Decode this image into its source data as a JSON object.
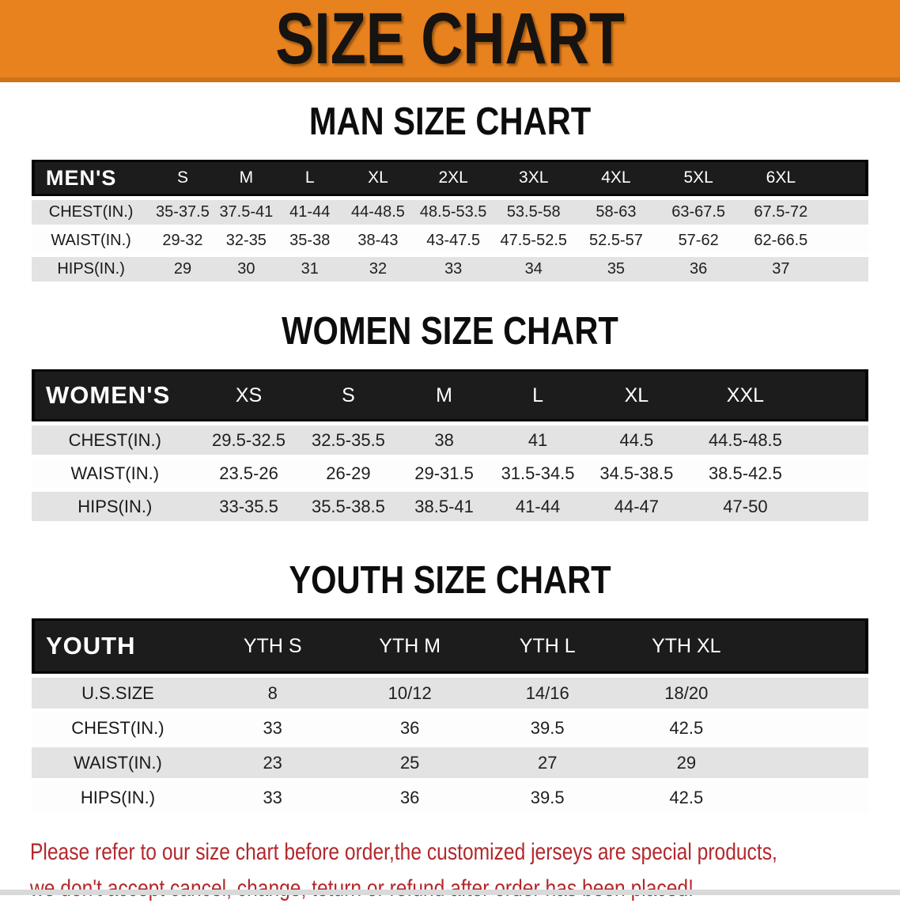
{
  "banner": {
    "title": "SIZE CHART"
  },
  "tables": [
    {
      "title": "MAN SIZE CHART",
      "header_label": "MEN'S",
      "columns": [
        "S",
        "M",
        "L",
        "XL",
        "2XL",
        "3XL",
        "4XL",
        "5XL",
        "6XL"
      ],
      "rows": [
        {
          "label": "CHEST(IN.)",
          "values": [
            "35-37.5",
            "37.5-41",
            "41-44",
            "44-48.5",
            "48.5-53.5",
            "53.5-58",
            "58-63",
            "63-67.5",
            "67.5-72"
          ]
        },
        {
          "label": "WAIST(IN.)",
          "values": [
            "29-32",
            "32-35",
            "35-38",
            "38-43",
            "43-47.5",
            "47.5-52.5",
            "52.5-57",
            "57-62",
            "62-66.5"
          ]
        },
        {
          "label": "HIPS(IN.)",
          "values": [
            "29",
            "30",
            "31",
            "32",
            "33",
            "34",
            "35",
            "36",
            "37"
          ]
        }
      ]
    },
    {
      "title": "WOMEN SIZE CHART",
      "header_label": "WOMEN'S",
      "columns": [
        "XS",
        "S",
        "M",
        "L",
        "XL",
        "XXL"
      ],
      "rows": [
        {
          "label": "CHEST(IN.)",
          "values": [
            "29.5-32.5",
            "32.5-35.5",
            "38",
            "41",
            "44.5",
            "44.5-48.5"
          ]
        },
        {
          "label": "WAIST(IN.)",
          "values": [
            "23.5-26",
            "26-29",
            "29-31.5",
            "31.5-34.5",
            "34.5-38.5",
            "38.5-42.5"
          ]
        },
        {
          "label": "HIPS(IN.)",
          "values": [
            "33-35.5",
            "35.5-38.5",
            "38.5-41",
            "41-44",
            "44-47",
            "47-50"
          ]
        }
      ]
    },
    {
      "title": "YOUTH SIZE CHART",
      "header_label": "YOUTH",
      "columns": [
        "YTH S",
        "YTH M",
        "YTH L",
        "YTH XL"
      ],
      "rows": [
        {
          "label": "U.S.SIZE",
          "values": [
            "8",
            "10/12",
            "14/16",
            "18/20"
          ]
        },
        {
          "label": "CHEST(IN.)",
          "values": [
            "33",
            "36",
            "39.5",
            "42.5"
          ]
        },
        {
          "label": "WAIST(IN.)",
          "values": [
            "23",
            "25",
            "27",
            "29"
          ]
        },
        {
          "label": "HIPS(IN.)",
          "values": [
            "33",
            "36",
            "39.5",
            "42.5"
          ]
        }
      ]
    }
  ],
  "disclaimer": {
    "lines": [
      "Please refer to our size chart before order,the customized jerseys are special products,",
      "we don't accept cancel, change, teturn or refund after order has been placed!"
    ]
  },
  "colors": {
    "banner_orange": "#e8821e",
    "banner_edge": "#cf7318",
    "header_black": "#1c1c1c",
    "row_gray": "#e3e3e3",
    "disclaimer_red": "#b2282c"
  }
}
